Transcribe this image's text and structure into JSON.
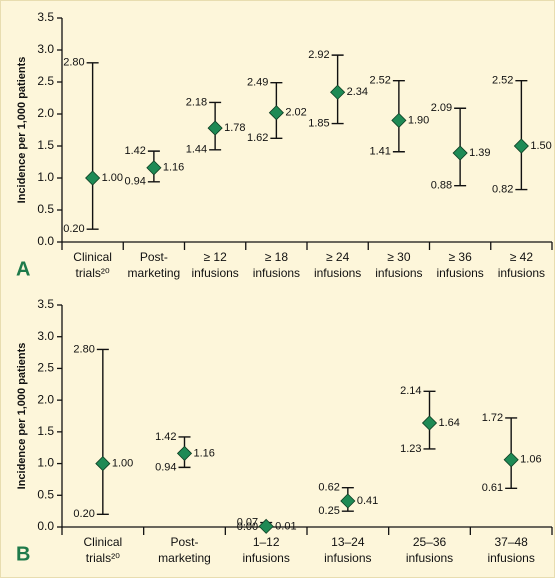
{
  "chart_data": [
    {
      "type": "errorbar",
      "panel_label": "A",
      "ylabel": "Incidence per 1,000 patients",
      "categories": [
        [
          "Clinical",
          "trials²⁰"
        ],
        [
          "Post-",
          "marketing"
        ],
        [
          "≥ 12",
          "infusions"
        ],
        [
          "≥ 18",
          "infusions"
        ],
        [
          "≥ 24",
          "infusions"
        ],
        [
          "≥ 30",
          "infusions"
        ],
        [
          "≥ 36",
          "infusions"
        ],
        [
          "≥ 42",
          "infusions"
        ]
      ],
      "values": [
        1.0,
        1.16,
        1.78,
        2.02,
        2.34,
        1.9,
        1.39,
        1.5
      ],
      "value_labels": [
        "1.00",
        "1.16",
        "1.78",
        "2.02",
        "2.34",
        "1.90",
        "1.39",
        "1.50"
      ],
      "lower": [
        0.2,
        0.94,
        1.44,
        1.62,
        1.85,
        1.41,
        0.88,
        0.82
      ],
      "lower_labels": [
        "0.20",
        "0.94",
        "1.44",
        "1.62",
        "1.85",
        "1.41",
        "0.88",
        "0.82"
      ],
      "upper": [
        2.8,
        1.42,
        2.18,
        2.49,
        2.92,
        2.52,
        2.09,
        2.52
      ],
      "upper_labels": [
        "2.80",
        "1.42",
        "2.18",
        "2.49",
        "2.92",
        "2.52",
        "2.09",
        "2.52"
      ],
      "color": "#1e8a55",
      "ylim": [
        0,
        3.5
      ],
      "yticks": [
        {
          "value": 0,
          "label": "0.0"
        },
        0.5,
        {
          "value": 1,
          "label": "1.0"
        },
        1.5,
        {
          "value": 2,
          "label": "2.0"
        },
        2.5,
        {
          "value": 3,
          "label": "3.0"
        },
        3.5
      ]
    },
    {
      "type": "errorbar",
      "panel_label": "B",
      "ylabel": "Incidence per 1,000 patients",
      "categories": [
        [
          "Clinical",
          "trials²⁰"
        ],
        [
          "Post-",
          "marketing"
        ],
        [
          "1–12",
          "infusions"
        ],
        [
          "13–24",
          "infusions"
        ],
        [
          "25–36",
          "infusions"
        ],
        [
          "37–48",
          "infusions"
        ]
      ],
      "values": [
        1.0,
        1.16,
        0.01,
        0.41,
        1.64,
        1.06
      ],
      "value_labels": [
        "1.00",
        "1.16",
        "0.01",
        "0.41",
        "1.64",
        "1.06"
      ],
      "lower": [
        0.2,
        0.94,
        0.0,
        0.25,
        1.23,
        0.61
      ],
      "lower_labels": [
        "0.20",
        "0.94",
        "0.00",
        "0.25",
        "1.23",
        "0.61"
      ],
      "upper": [
        2.8,
        1.42,
        0.07,
        0.62,
        2.14,
        1.72
      ],
      "upper_labels": [
        "2.80",
        "1.42",
        "0.07",
        "0.62",
        "2.14",
        "1.72"
      ],
      "color": "#1e8a55",
      "ylim": [
        0,
        3.5
      ],
      "yticks": [
        {
          "value": 0,
          "label": "0.0"
        },
        0.5,
        {
          "value": 1,
          "label": "1.0"
        },
        1.5,
        {
          "value": 2,
          "label": "2.0"
        },
        2.5,
        {
          "value": 3,
          "label": "3.0"
        },
        3.5
      ]
    }
  ]
}
